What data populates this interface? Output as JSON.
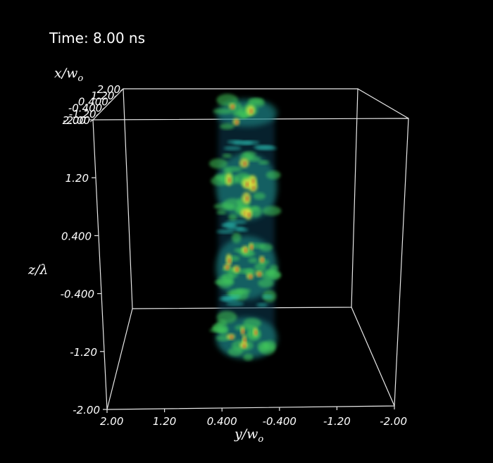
{
  "time_label": "Time: 8.00 ns",
  "axes": {
    "z": {
      "title": "z/λ",
      "ticks": [
        "2.00",
        "1.20",
        "0.400",
        "-0.400",
        "-1.20",
        "-2.00"
      ]
    },
    "y": {
      "title": "y/w",
      "subscript": "o",
      "ticks": [
        "2.00",
        "1.20",
        "0.400",
        "-0.400",
        "-1.20",
        "-2.00"
      ]
    },
    "x": {
      "title": "x/w",
      "subscript": "o",
      "ticks": [
        "2.00",
        "1.20",
        "0.400",
        "-0.400",
        "-1.20",
        "-2.00"
      ]
    }
  },
  "colors": {
    "background": "#000000",
    "edges": "#e8e8e8",
    "volume_cyan": "#2fd3c4",
    "volume_green": "#43c95a",
    "volume_yellow": "#e4e23a",
    "volume_red": "#d63c2a"
  }
}
